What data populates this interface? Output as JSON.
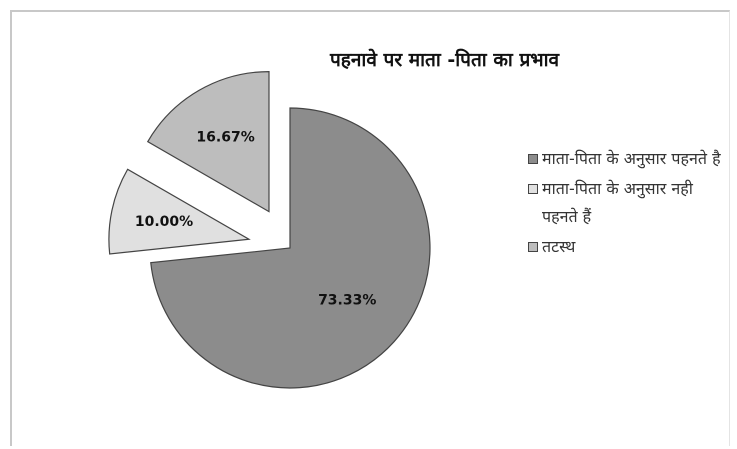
{
  "chart_data": {
    "type": "pie",
    "title": "पहनावे पर माता -पिता का प्रभाव",
    "slices": [
      {
        "label": "माता-पिता के अनुसार पहनते है",
        "value": 73.33,
        "value_label": "73.33%",
        "color": "#8c8c8c",
        "exploded": false
      },
      {
        "label": "माता-पिता के अनुसार नही पहनते हैं",
        "value": 10.0,
        "value_label": "10.00%",
        "color": "#e0e0e0",
        "exploded": true
      },
      {
        "label": "तटस्थ",
        "value": 16.67,
        "value_label": "16.67%",
        "color": "#bdbdbd",
        "exploded": true
      }
    ],
    "legend_position": "right"
  }
}
